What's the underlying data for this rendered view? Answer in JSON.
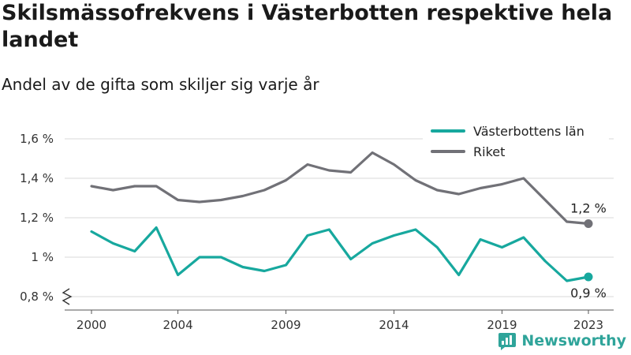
{
  "chart_data": {
    "type": "line",
    "title": "Skilsmässofrekvens i Västerbotten respektive hela landet",
    "subtitle": "Andel av de gifta som skiljer sig varje år",
    "x": [
      2000,
      2001,
      2002,
      2003,
      2004,
      2005,
      2006,
      2007,
      2008,
      2009,
      2010,
      2011,
      2012,
      2013,
      2014,
      2015,
      2016,
      2017,
      2018,
      2019,
      2020,
      2021,
      2022,
      2023
    ],
    "x_ticks": [
      2000,
      2004,
      2009,
      2014,
      2019,
      2023
    ],
    "y_ticks": [
      0.8,
      1.0,
      1.2,
      1.4,
      1.6
    ],
    "y_tick_labels": [
      "0,8 %",
      "1 %",
      "1,2 %",
      "1,4 %",
      "1,6 %"
    ],
    "ylim": [
      0.8,
      1.6
    ],
    "grid": "horizontal",
    "legend": "top-right",
    "series": [
      {
        "name": "Västerbottens län",
        "color": "#17a89e",
        "values": [
          1.13,
          1.07,
          1.03,
          1.15,
          0.91,
          1.0,
          1.0,
          0.95,
          0.93,
          0.96,
          1.11,
          1.14,
          0.99,
          1.07,
          1.11,
          1.14,
          1.05,
          0.91,
          1.09,
          1.05,
          1.1,
          0.98,
          0.88,
          0.9
        ],
        "end_label": "0,9 %"
      },
      {
        "name": "Riket",
        "color": "#717177",
        "values": [
          1.36,
          1.34,
          1.36,
          1.36,
          1.29,
          1.28,
          1.29,
          1.31,
          1.34,
          1.39,
          1.47,
          1.44,
          1.43,
          1.53,
          1.47,
          1.39,
          1.34,
          1.32,
          1.35,
          1.37,
          1.4,
          1.29,
          1.18,
          1.17
        ],
        "end_label": "1,2 %"
      }
    ]
  },
  "brand": {
    "name": "Newsworthy",
    "icon": "bar-chart-logo-icon",
    "color": "#2fa49a"
  }
}
